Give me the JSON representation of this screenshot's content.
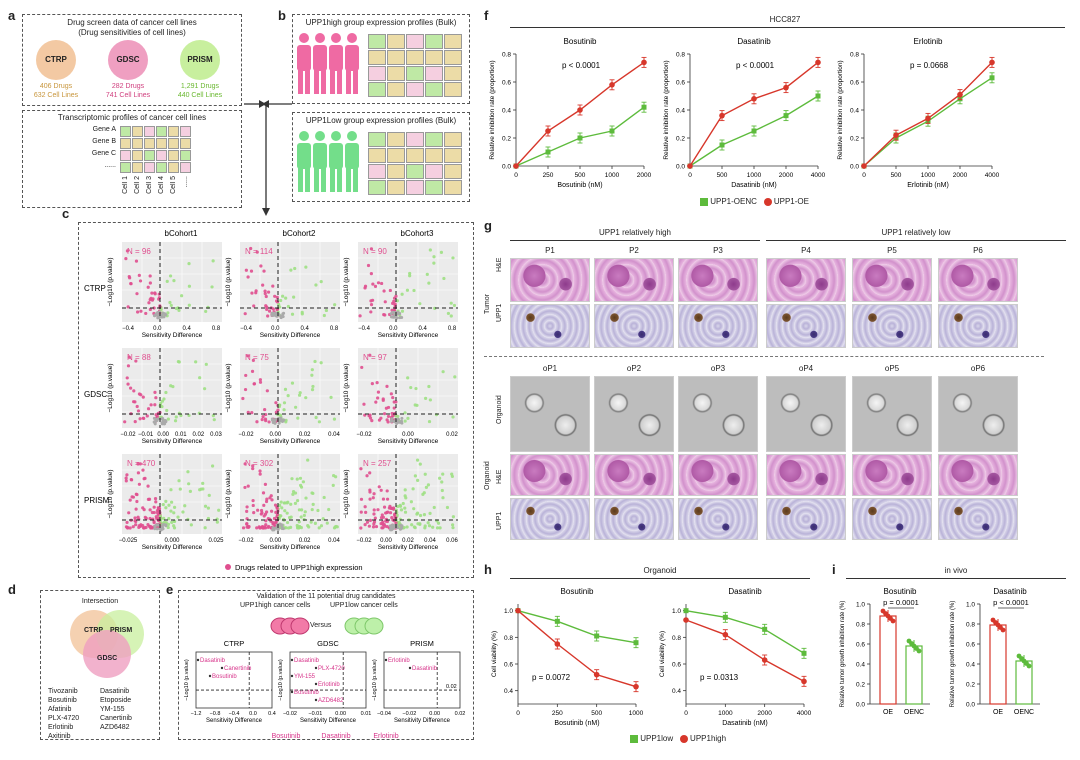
{
  "panels": {
    "a": {
      "letter": "a",
      "title1": "Drug screen data of cancer cell lines",
      "title2": "(Drug sensitivities of cell lines)",
      "circles": [
        {
          "name": "CTRP",
          "drugs": "406 Drugs",
          "lines": "632 Cell Lines",
          "color": "#f3c9a3",
          "textcolor": "#c8963c"
        },
        {
          "name": "GDSC",
          "drugs": "282 Drugs",
          "lines": "741 Cell Lines",
          "color": "#ef9fc1",
          "textcolor": "#d0407f"
        },
        {
          "name": "PRISM",
          "drugs": "1,291 Drugs",
          "lines": "440 Cell Lines",
          "color": "#c8ef9e",
          "textcolor": "#6ab830"
        }
      ],
      "transcript_title": "Transcriptomic profiles of cancer cell lines",
      "genes": [
        "Gene A",
        "Gene B",
        "Gene C",
        "......"
      ],
      "cells": [
        "Cell 1",
        "Cell 2",
        "Cell 3",
        "Cell 4",
        "Cell 5",
        "......"
      ]
    },
    "b": {
      "letter": "b",
      "high_title": "UPP1high group expression profiles (Bulk)",
      "low_title": "UPP1Low group expression profiles (Bulk)"
    },
    "c": {
      "letter": "c",
      "cohorts": [
        "bCohort1",
        "bCohort2",
        "bCohort3"
      ],
      "rows": [
        "CTRP",
        "GDSC",
        "PRISM"
      ],
      "n_values": [
        [
          "N = 96",
          "N = 114",
          "N = 90"
        ],
        [
          "N = 88",
          "N = 75",
          "N = 97"
        ],
        [
          "N = 470",
          "N = 302",
          "N = 257"
        ]
      ],
      "ylabel": "−Log10 (p.value)",
      "xlabel": "Sensitivity Difference",
      "xticks": [
        [
          "−0.4",
          "0.0",
          "0.4",
          "0.8"
        ],
        [
          "−0.4",
          "0.0",
          "0.4",
          "0.8"
        ],
        [
          "−0.4",
          "0.0",
          "0.4",
          "0.8"
        ],
        [
          "−0.02",
          "−0.01",
          "0.00",
          "0.01",
          "0.02",
          "0.03"
        ],
        [
          "−0.02",
          "0.00",
          "0.02",
          "0.04"
        ],
        [
          "−0.02",
          "0.00",
          "0.02"
        ],
        [
          "−0.025",
          "0.000",
          "0.025"
        ],
        [
          "−0.02",
          "0.00",
          "0.02",
          "0.04"
        ],
        [
          "−0.02",
          "0.00",
          "0.02",
          "0.04",
          "0.06"
        ]
      ],
      "legend": "Drugs related to UPP1high expression"
    },
    "d": {
      "letter": "d",
      "title": "Intersection",
      "labels": [
        "CTRP",
        "PRISM",
        "GDSC"
      ],
      "drugs_left": [
        "Tivozanib",
        "Bosutinib",
        "Afatinib",
        "PLX-4720",
        "Erlotinib",
        "Axitinib"
      ],
      "drugs_right": [
        "Dasatinib",
        "Etoposide",
        "YM-155",
        "Canertinib",
        "AZD6482"
      ]
    },
    "e": {
      "letter": "e",
      "title": "Validation of the 11 potential drug candidates",
      "sub_high": "UPP1high cancer cells",
      "sub_low": "UPP1low cancer cells",
      "versus": "Versus",
      "plots": [
        {
          "title": "CTRP",
          "labels": [
            "Dasatinib",
            "Canertinib",
            "Bosutinib"
          ],
          "xticks": [
            "−1.2",
            "−0.8",
            "−0.4",
            "0.0",
            "0.4"
          ]
        },
        {
          "title": "GDSC",
          "labels": [
            "Dasatinib",
            "PLX-4720",
            "YM-155",
            "Erlotinib",
            "Bosutinib",
            "AZD6482"
          ],
          "xticks": [
            "−0.02",
            "−0.01",
            "0.00",
            "0.01"
          ]
        },
        {
          "title": "PRISM",
          "labels": [
            "Erlotinib",
            "Dasatinib"
          ],
          "xticks": [
            "−0.04",
            "−0.02",
            "0.00",
            "0.02"
          ]
        }
      ],
      "ylabel": "−Log10 (p.value)",
      "xlabel": "Sensitivity Difference",
      "footer": [
        "Bosutinib",
        "Dasatinib",
        "Erlotinib"
      ],
      "extra_tick": "0.02"
    },
    "f": {
      "letter": "f",
      "title": "HCC827",
      "ylabel": "Relative inhibition rate (proportion)",
      "legend": [
        "UPP1-OENC",
        "UPP1-OE"
      ],
      "colors": {
        "oenc": "#5dbb3c",
        "oe": "#d7372b"
      }
    },
    "g": {
      "letter": "g",
      "high": "UPP1 relatively high",
      "low": "UPP1 relatively low",
      "patients": [
        "P1",
        "P2",
        "P3",
        "P4",
        "P5",
        "P6"
      ],
      "organoids": [
        "oP1",
        "oP2",
        "oP3",
        "oP4",
        "oP5",
        "oP6"
      ],
      "row_tumor": "Tumor",
      "row_organoid": "Organoid",
      "he": "H&E",
      "upp1": "UPP1",
      "organoid_row": "Organoid"
    },
    "h": {
      "letter": "h",
      "title": "Organoid",
      "ylabel": "Cell viability (%)",
      "legend": [
        "UPP1low",
        "UPP1high"
      ]
    },
    "i": {
      "letter": "i",
      "title": "in vivo",
      "ylabel": "Relative tumor growth inhibition rate (%)"
    }
  },
  "chart_data": [
    {
      "type": "line",
      "panel": "f",
      "title": "Bosutinib",
      "xlabel": "Bosutinib (nM)",
      "ylabel": "Relative inhibition rate (proportion)",
      "x": [
        0,
        250,
        500,
        1000,
        2000
      ],
      "xticks": [
        "0",
        "250",
        "500",
        "1000",
        "2000"
      ],
      "ylim": [
        0,
        0.8
      ],
      "yticks": [
        "0.0",
        "0.2",
        "0.4",
        "0.6",
        "0.8"
      ],
      "annotation": "p < 0.0001",
      "series": [
        {
          "name": "UPP1-OENC",
          "values": [
            0.0,
            0.1,
            0.2,
            0.25,
            0.42
          ]
        },
        {
          "name": "UPP1-OE",
          "values": [
            0.0,
            0.25,
            0.4,
            0.58,
            0.74
          ]
        }
      ]
    },
    {
      "type": "line",
      "panel": "f",
      "title": "Dasatinib",
      "xlabel": "Dasatinib (nM)",
      "ylabel": "Relative inhibition rate (proportion)",
      "x": [
        0,
        500,
        1000,
        2000,
        4000
      ],
      "xticks": [
        "0",
        "500",
        "1000",
        "2000",
        "4000"
      ],
      "ylim": [
        0,
        0.8
      ],
      "yticks": [
        "0.0",
        "0.2",
        "0.4",
        "0.6",
        "0.8"
      ],
      "annotation": "p < 0.0001",
      "series": [
        {
          "name": "UPP1-OENC",
          "values": [
            0.0,
            0.15,
            0.25,
            0.36,
            0.5
          ]
        },
        {
          "name": "UPP1-OE",
          "values": [
            0.0,
            0.36,
            0.48,
            0.56,
            0.74
          ]
        }
      ]
    },
    {
      "type": "line",
      "panel": "f",
      "title": "Erlotinib",
      "xlabel": "Erlotinib (nM)",
      "ylabel": "Relative inhibition rate (proportion)",
      "x": [
        0,
        500,
        1000,
        2000,
        4000
      ],
      "xticks": [
        "0",
        "500",
        "1000",
        "2000",
        "4000"
      ],
      "ylim": [
        0,
        0.8
      ],
      "yticks": [
        "0.0",
        "0.2",
        "0.4",
        "0.6",
        "0.8"
      ],
      "annotation": "p = 0.0668",
      "series": [
        {
          "name": "UPP1-OENC",
          "values": [
            0.0,
            0.2,
            0.32,
            0.48,
            0.63
          ]
        },
        {
          "name": "UPP1-OE",
          "values": [
            0.0,
            0.22,
            0.34,
            0.51,
            0.74
          ]
        }
      ]
    },
    {
      "type": "line",
      "panel": "h",
      "title": "Bosutinib",
      "xlabel": "Bosutinib (nM)",
      "ylabel": "Cell viability (%)",
      "x": [
        0,
        250,
        500,
        1000
      ],
      "xticks": [
        "0",
        "250",
        "500",
        "1000"
      ],
      "ylim": [
        0.3,
        1.05
      ],
      "yticks": [
        "0.4",
        "0.6",
        "0.8",
        "1.0"
      ],
      "annotation": "p = 0.0072",
      "series": [
        {
          "name": "UPP1low",
          "values": [
            1.0,
            0.92,
            0.81,
            0.76
          ]
        },
        {
          "name": "UPP1high",
          "values": [
            1.0,
            0.75,
            0.52,
            0.43
          ]
        }
      ]
    },
    {
      "type": "line",
      "panel": "h",
      "title": "Dasatinib",
      "xlabel": "Dasatinib (nM)",
      "ylabel": "Cell viability (%)",
      "x": [
        0,
        1000,
        2000,
        4000
      ],
      "xticks": [
        "0",
        "1000",
        "2000",
        "4000"
      ],
      "ylim": [
        0.3,
        1.05
      ],
      "yticks": [
        "0.4",
        "0.6",
        "0.8",
        "1.0"
      ],
      "annotation": "p = 0.0313",
      "series": [
        {
          "name": "UPP1low",
          "values": [
            1.0,
            0.95,
            0.86,
            0.68
          ]
        },
        {
          "name": "UPP1high",
          "values": [
            0.93,
            0.82,
            0.63,
            0.47
          ]
        }
      ]
    },
    {
      "type": "bar",
      "panel": "i",
      "title": "Bosutinib",
      "categories": [
        "OE",
        "OENC"
      ],
      "values": [
        0.88,
        0.58
      ],
      "ylim": [
        0,
        1.0
      ],
      "yticks": [
        "0.0",
        "0.2",
        "0.4",
        "0.6",
        "0.8",
        "1.0"
      ],
      "annotation": "p = 0.0001",
      "ylabel": "Relative tumor growth inhibition rate (%)"
    },
    {
      "type": "bar",
      "panel": "i",
      "title": "Dasatinib",
      "categories": [
        "OE",
        "OENC"
      ],
      "values": [
        0.79,
        0.43
      ],
      "ylim": [
        0,
        1.0
      ],
      "yticks": [
        "0.0",
        "0.2",
        "0.4",
        "0.6",
        "0.8",
        "1.0"
      ],
      "annotation": "p < 0.0001",
      "ylabel": "Relative tumor growth inhibition rate (%)"
    }
  ]
}
